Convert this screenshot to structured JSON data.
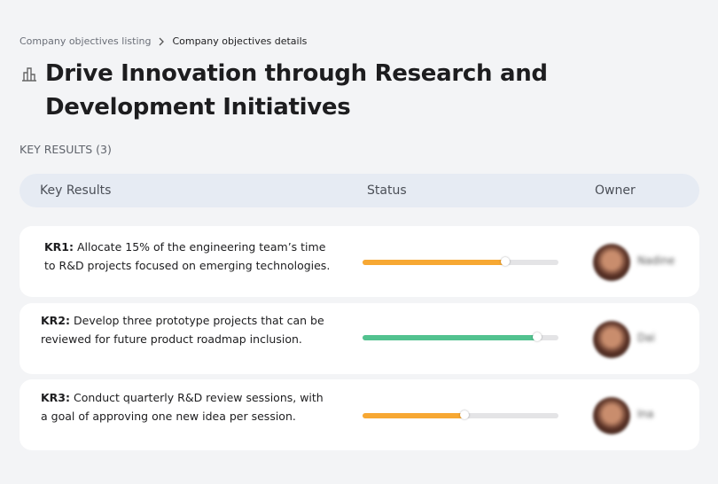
{
  "breadcrumb": {
    "parent": "Company objectives listing",
    "current": "Company objectives details"
  },
  "header": {
    "title": "Drive Innovation through Research and Development Initiatives"
  },
  "section_label": "KEY RESULTS (3)",
  "table": {
    "columns": [
      "Key Results",
      "Status",
      "Owner"
    ],
    "rows": [
      {
        "id": "KR1:",
        "text": "Allocate 15% of the engineering team’s time to R&D projects focused on emerging technologies.",
        "progress": 73,
        "color": "#f7a833",
        "owner": "Nadine"
      },
      {
        "id": "KR2:",
        "text": "Develop three prototype projects that can be reviewed for future product roadmap inclusion.",
        "progress": 89,
        "color": "#52c28f",
        "owner": "Dai"
      },
      {
        "id": "KR3:",
        "text": "Conduct quarterly R&D review sessions, with a goal of approving one new idea per session.",
        "progress": 52,
        "color": "#f7a833",
        "owner": "Ina"
      }
    ]
  }
}
